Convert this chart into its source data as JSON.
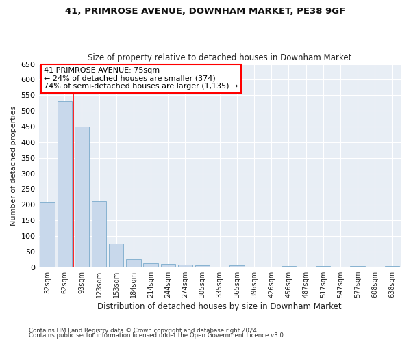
{
  "title1": "41, PRIMROSE AVENUE, DOWNHAM MARKET, PE38 9GF",
  "title2": "Size of property relative to detached houses in Downham Market",
  "xlabel": "Distribution of detached houses by size in Downham Market",
  "ylabel": "Number of detached properties",
  "footnote1": "Contains HM Land Registry data © Crown copyright and database right 2024.",
  "footnote2": "Contains public sector information licensed under the Open Government Licence v3.0.",
  "categories": [
    "32sqm",
    "62sqm",
    "93sqm",
    "123sqm",
    "153sqm",
    "184sqm",
    "214sqm",
    "244sqm",
    "274sqm",
    "305sqm",
    "335sqm",
    "365sqm",
    "396sqm",
    "426sqm",
    "456sqm",
    "487sqm",
    "517sqm",
    "547sqm",
    "577sqm",
    "608sqm",
    "638sqm"
  ],
  "values": [
    207,
    530,
    450,
    212,
    75,
    26,
    13,
    10,
    8,
    5,
    0,
    5,
    0,
    0,
    3,
    0,
    4,
    0,
    3,
    0,
    3
  ],
  "bar_color": "#c8d8eb",
  "bar_edge_color": "#7aabcc",
  "property_line_x": 1.5,
  "annotation_text1": "41 PRIMROSE AVENUE: 75sqm",
  "annotation_text2": "← 24% of detached houses are smaller (374)",
  "annotation_text3": "74% of semi-detached houses are larger (1,135) →",
  "annotation_box_color": "white",
  "annotation_box_edge_color": "red",
  "vline_color": "red",
  "ylim": [
    0,
    650
  ],
  "yticks": [
    0,
    50,
    100,
    150,
    200,
    250,
    300,
    350,
    400,
    450,
    500,
    550,
    600,
    650
  ],
  "fig_bg_color": "#ffffff",
  "plot_bg_color": "#e8eef5"
}
